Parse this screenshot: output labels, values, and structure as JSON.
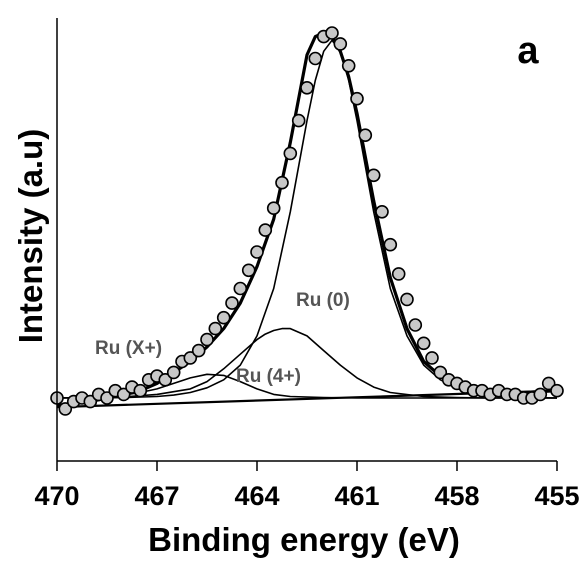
{
  "chart_data": {
    "type": "scatter",
    "panel_label": "a",
    "xlabel": "Binding energy (eV)",
    "ylabel": "Intensity (a.u)",
    "xlim": [
      470,
      455
    ],
    "x_reversed": true,
    "ylim": [
      -0.12,
      1.1
    ],
    "x_ticks": [
      "470",
      "467",
      "464",
      "461",
      "458",
      "455"
    ],
    "y_ticks_shown": false,
    "grid": false,
    "annotations": [
      "Ru (X+)",
      "Ru (4+)",
      "Ru (0)"
    ],
    "colors": {
      "markers_fill": "#c8c8c8",
      "markers_stroke": "#000000",
      "lines": "#000000",
      "annotations": "#555555"
    },
    "series": [
      {
        "kind": "markers",
        "x": [
          470.0,
          469.75,
          469.5,
          469.25,
          469.0,
          468.75,
          468.5,
          468.25,
          468.0,
          467.75,
          467.5,
          467.25,
          467.0,
          466.75,
          466.5,
          466.25,
          466.0,
          465.75,
          465.5,
          465.25,
          465.0,
          464.75,
          464.5,
          464.25,
          464.0,
          463.75,
          463.5,
          463.25,
          463.0,
          462.75,
          462.5,
          462.25,
          462.0,
          461.75,
          461.5,
          461.25,
          461.0,
          460.75,
          460.5,
          460.25,
          460.0,
          459.75,
          459.5,
          459.25,
          459.0,
          458.75,
          458.5,
          458.25,
          458.0,
          457.75,
          457.5,
          457.25,
          457.0,
          456.75,
          456.5,
          456.25,
          456.0,
          455.75,
          455.5,
          455.25,
          455.0
        ],
        "y": [
          0.0,
          -0.03,
          -0.01,
          0.0,
          -0.01,
          0.01,
          0.0,
          0.02,
          0.01,
          0.03,
          0.02,
          0.05,
          0.06,
          0.05,
          0.07,
          0.1,
          0.11,
          0.13,
          0.16,
          0.19,
          0.22,
          0.26,
          0.3,
          0.35,
          0.4,
          0.46,
          0.52,
          0.59,
          0.67,
          0.76,
          0.85,
          0.93,
          0.99,
          1.0,
          0.97,
          0.91,
          0.82,
          0.72,
          0.61,
          0.51,
          0.42,
          0.34,
          0.27,
          0.2,
          0.15,
          0.11,
          0.07,
          0.05,
          0.04,
          0.03,
          0.02,
          0.02,
          0.01,
          0.02,
          0.01,
          0.01,
          0.0,
          0.0,
          0.01,
          0.04,
          0.02
        ]
      },
      {
        "kind": "line",
        "name": "Ru (0)",
        "x": [
          470,
          469,
          468,
          467,
          466.5,
          466,
          465.5,
          465,
          464.5,
          464,
          463.5,
          463,
          462.5,
          462.25,
          462,
          461.75,
          461.5,
          461.25,
          461,
          460.5,
          460,
          459.5,
          459,
          458.5,
          458,
          457,
          456,
          455
        ],
        "y": [
          0,
          0,
          0.001,
          0.004,
          0.008,
          0.015,
          0.028,
          0.05,
          0.09,
          0.17,
          0.3,
          0.51,
          0.76,
          0.87,
          0.95,
          0.98,
          0.95,
          0.87,
          0.76,
          0.51,
          0.3,
          0.17,
          0.09,
          0.05,
          0.028,
          0.008,
          0.002,
          0
        ]
      },
      {
        "kind": "line",
        "name": "Ru (4+)",
        "x": [
          470,
          468,
          467,
          466,
          465.5,
          465,
          464.5,
          464,
          463.75,
          463.5,
          463.25,
          463,
          462.5,
          462,
          461.5,
          461,
          460.5,
          460,
          459,
          458,
          457,
          455
        ],
        "y": [
          0,
          0.003,
          0.01,
          0.025,
          0.045,
          0.08,
          0.12,
          0.16,
          0.175,
          0.185,
          0.19,
          0.19,
          0.17,
          0.13,
          0.09,
          0.055,
          0.03,
          0.015,
          0.004,
          0.001,
          0,
          0
        ]
      },
      {
        "kind": "line",
        "name": "Ru (X+)",
        "x": [
          470,
          469,
          468,
          467.5,
          467,
          466.5,
          466,
          465.5,
          465,
          464.5,
          464,
          463.5,
          463,
          462,
          461,
          455
        ],
        "y": [
          0,
          0.002,
          0.008,
          0.015,
          0.025,
          0.04,
          0.055,
          0.065,
          0.062,
          0.045,
          0.025,
          0.01,
          0.004,
          0.001,
          0,
          0
        ]
      },
      {
        "kind": "line",
        "name": "Baseline",
        "x": [
          470,
          455
        ],
        "y": [
          -0.025,
          0.02
        ]
      },
      {
        "kind": "line",
        "name": "Envelope",
        "x": [
          470,
          469,
          468,
          467.5,
          467,
          466.5,
          466,
          465.5,
          465,
          464.5,
          464,
          463.5,
          463,
          462.5,
          462.25,
          462,
          461.75,
          461.5,
          461.25,
          461,
          460.5,
          460,
          459.5,
          459,
          458.5,
          458,
          457,
          456,
          455
        ],
        "y": [
          -0.02,
          -0.01,
          0.01,
          0.02,
          0.04,
          0.07,
          0.1,
          0.14,
          0.19,
          0.26,
          0.36,
          0.49,
          0.7,
          0.94,
          0.99,
          1.0,
          0.99,
          0.95,
          0.88,
          0.78,
          0.54,
          0.33,
          0.19,
          0.1,
          0.06,
          0.035,
          0.015,
          0.015,
          0.02
        ]
      }
    ]
  }
}
